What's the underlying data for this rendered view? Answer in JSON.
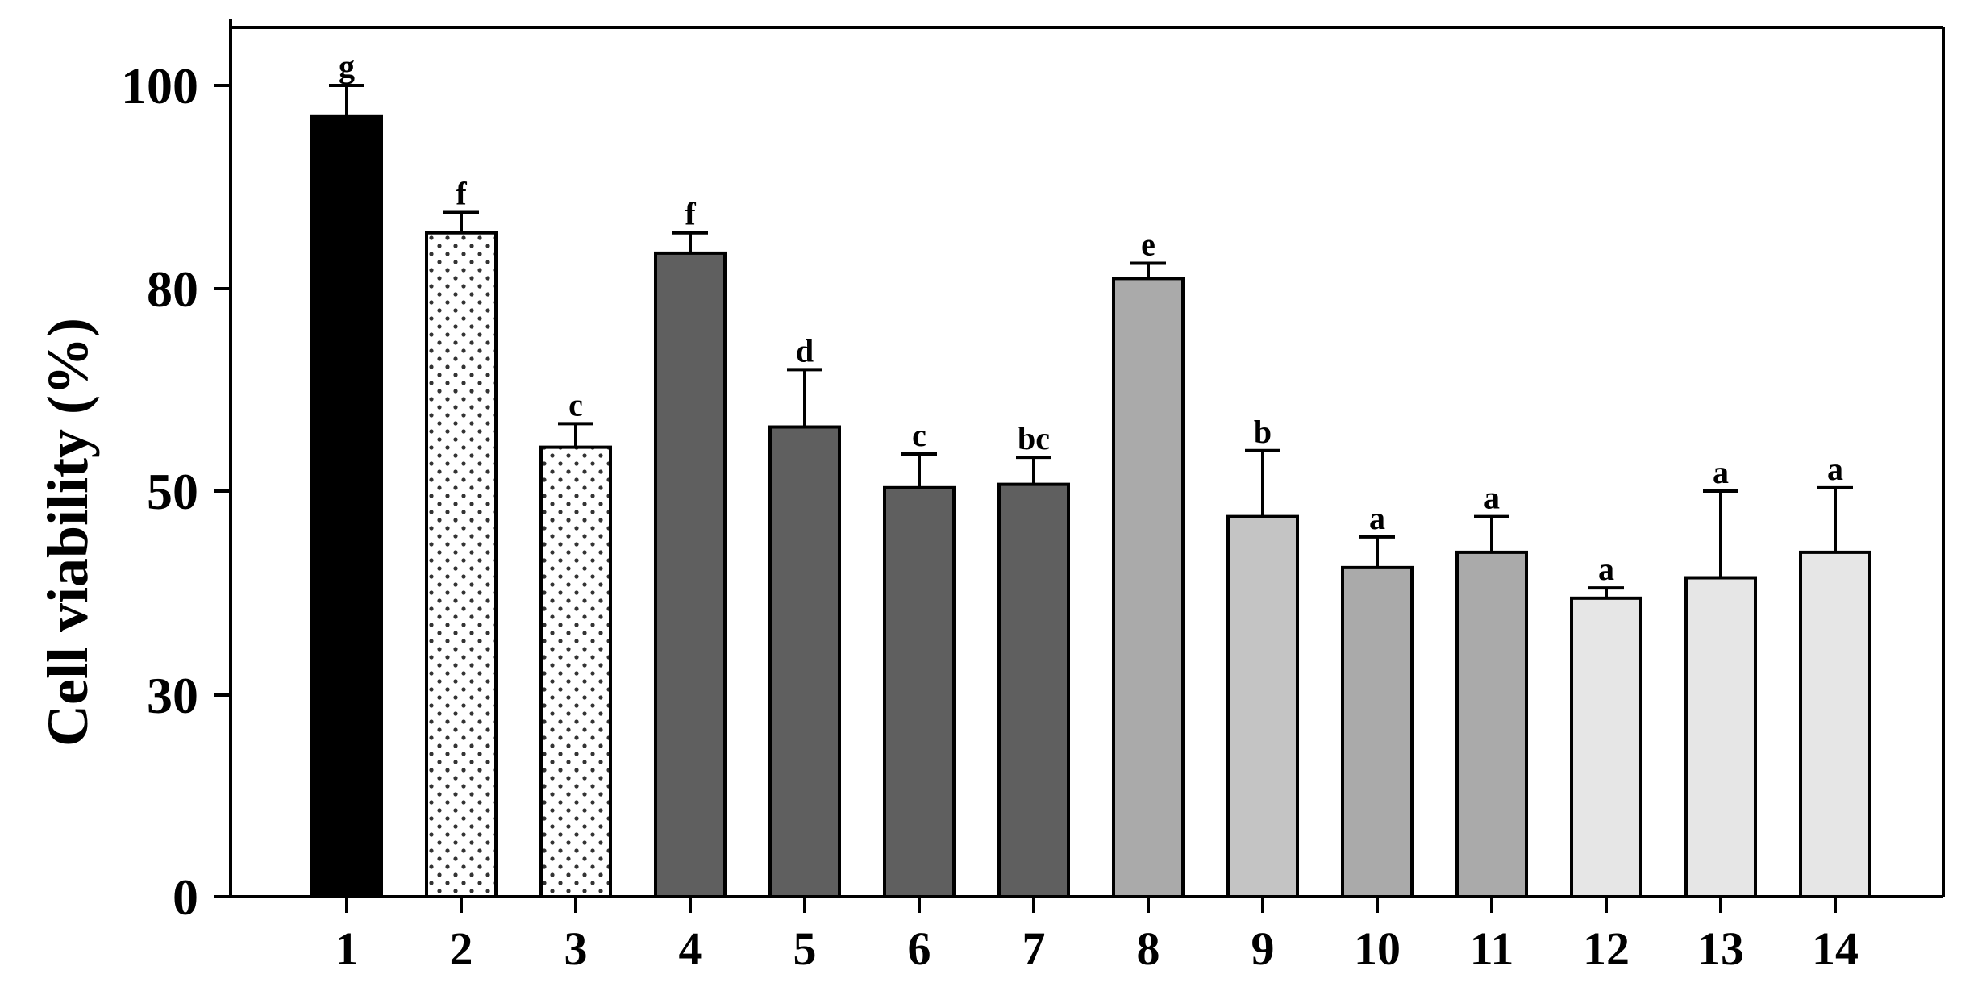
{
  "chart_data": {
    "type": "bar",
    "title": "",
    "xlabel": "",
    "ylabel": "Cell viability (%)",
    "ylim": [
      0,
      100
    ],
    "yticks": [
      "0",
      "30",
      "50",
      "80",
      "100"
    ],
    "categories": [
      "1",
      "2",
      "3",
      "4",
      "5",
      "6",
      "7",
      "8",
      "9",
      "10",
      "11",
      "12",
      "13",
      "14"
    ],
    "values": [
      97,
      85.5,
      56.5,
      83.5,
      59.5,
      50.5,
      51,
      81,
      47.5,
      42.5,
      44,
      39.5,
      41.5,
      44
    ],
    "errors": [
      3,
      2,
      3.5,
      2,
      8.5,
      5,
      4,
      1.5,
      8.5,
      3,
      3.5,
      1,
      8.5,
      6.5
    ],
    "significance": [
      "g",
      "f",
      "c",
      "f",
      "d",
      "c",
      "bc",
      "e",
      "b",
      "a",
      "a",
      "a",
      "a",
      "a"
    ],
    "bar_styles": [
      "solid",
      "dotted",
      "dotted",
      "solid",
      "solid",
      "solid",
      "solid",
      "solid",
      "solid",
      "solid",
      "solid",
      "solid",
      "solid",
      "solid"
    ],
    "bar_colors": [
      "#000000",
      "#ffffff",
      "#ffffff",
      "#5f5f5f",
      "#5f5f5f",
      "#5f5f5f",
      "#5f5f5f",
      "#aaaaaa",
      "#c4c4c4",
      "#aaaaaa",
      "#aaaaaa",
      "#e6e6e6",
      "#e6e6e6",
      "#e6e6e6"
    ],
    "grid": false,
    "legend": "none"
  }
}
